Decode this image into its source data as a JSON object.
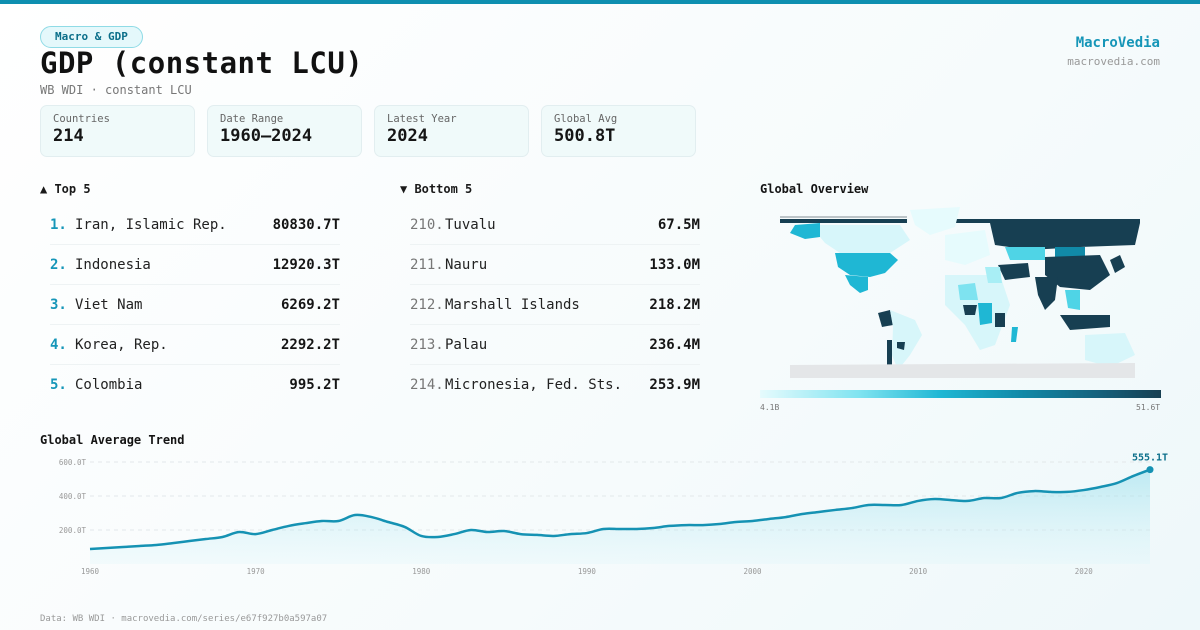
{
  "header": {
    "tag": "Macro & GDP",
    "title": "GDP (constant LCU)",
    "subtitle": "WB WDI · constant LCU",
    "brand": "MacroVedia",
    "brand_url": "macrovedia.com"
  },
  "stats": [
    {
      "label": "Countries",
      "value": "214"
    },
    {
      "label": "Date Range",
      "value": "1960–2024"
    },
    {
      "label": "Latest Year",
      "value": "2024"
    },
    {
      "label": "Global Avg",
      "value": "500.8T"
    }
  ],
  "top5": {
    "title": "▲ Top 5",
    "items": [
      {
        "rank": "1.",
        "name": "Iran, Islamic Rep.",
        "value": "80830.7T"
      },
      {
        "rank": "2.",
        "name": "Indonesia",
        "value": "12920.3T"
      },
      {
        "rank": "3.",
        "name": "Viet Nam",
        "value": "6269.2T"
      },
      {
        "rank": "4.",
        "name": "Korea, Rep.",
        "value": "2292.2T"
      },
      {
        "rank": "5.",
        "name": "Colombia",
        "value": "995.2T"
      }
    ]
  },
  "bottom5": {
    "title": "▼ Bottom 5",
    "items": [
      {
        "rank": "210.",
        "name": "Tuvalu",
        "value": "67.5M"
      },
      {
        "rank": "211.",
        "name": "Nauru",
        "value": "133.0M"
      },
      {
        "rank": "212.",
        "name": "Marshall Islands",
        "value": "218.2M"
      },
      {
        "rank": "213.",
        "name": "Palau",
        "value": "236.4M"
      },
      {
        "rank": "214.",
        "name": "Micronesia, Fed. Sts.",
        "value": "253.9M"
      }
    ]
  },
  "map": {
    "title": "Global Overview",
    "legend_min": "4.1B",
    "legend_max": "51.6T",
    "colors": {
      "low": "#e6fbfd",
      "mid": "#1fb7d4",
      "high": "#173f52",
      "nodata": "#e4e6e8"
    }
  },
  "trend": {
    "title": "Global Average Trend",
    "last_label": "555.1T"
  },
  "footer": "Data: WB WDI · macrovedia.com/series/e67f927b0a597a07",
  "colors": {
    "accent": "#1696b8",
    "line": "#1592b3",
    "topbar": "#0e8fb0"
  },
  "chart_data": {
    "type": "area",
    "title": "Global Average Trend",
    "xlabel": "",
    "ylabel": "",
    "x_ticks": [
      "1960",
      "1970",
      "1980",
      "1990",
      "2000",
      "2010",
      "2020"
    ],
    "y_ticks": [
      "200.0T",
      "400.0T",
      "600.0T"
    ],
    "ylim": [
      0,
      600
    ],
    "grid": true,
    "unit": "T",
    "x": [
      1960,
      1961,
      1962,
      1963,
      1964,
      1965,
      1966,
      1967,
      1968,
      1969,
      1970,
      1971,
      1972,
      1973,
      1974,
      1975,
      1976,
      1977,
      1978,
      1979,
      1980,
      1981,
      1982,
      1983,
      1984,
      1985,
      1986,
      1987,
      1988,
      1989,
      1990,
      1991,
      1992,
      1993,
      1994,
      1995,
      1996,
      1997,
      1998,
      1999,
      2000,
      2001,
      2002,
      2003,
      2004,
      2005,
      2006,
      2007,
      2008,
      2009,
      2010,
      2011,
      2012,
      2013,
      2014,
      2015,
      2016,
      2017,
      2018,
      2019,
      2020,
      2021,
      2022,
      2023,
      2024
    ],
    "values": [
      88,
      94,
      100,
      106,
      112,
      123,
      135,
      147,
      159,
      188,
      176,
      200,
      224,
      240,
      253,
      253,
      288,
      276,
      247,
      218,
      165,
      159,
      176,
      200,
      188,
      194,
      176,
      171,
      165,
      176,
      182,
      206,
      206,
      206,
      212,
      224,
      229,
      229,
      235,
      247,
      253,
      265,
      276,
      294,
      306,
      318,
      329,
      347,
      347,
      347,
      371,
      382,
      376,
      371,
      388,
      388,
      418,
      429,
      424,
      424,
      435,
      453,
      476,
      518,
      555.1
    ],
    "annotation": {
      "x": 2024,
      "label": "555.1T"
    }
  }
}
